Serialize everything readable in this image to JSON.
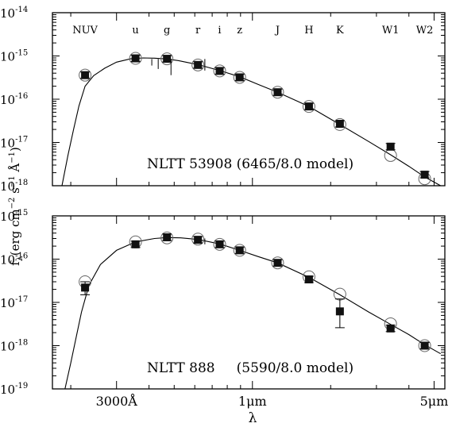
{
  "chart_data": [
    {
      "type": "scatter",
      "label": "NLTT 53908 (6465/8.0 model)",
      "ylim": [
        1e-18,
        1e-14
      ],
      "yscale": "log",
      "ytick_labels": [
        "10",
        "10",
        "10",
        "10",
        "10"
      ],
      "ytick_exponents": [
        "-18",
        "-17",
        "-16",
        "-15",
        "-14"
      ],
      "yticks": [
        1e-18,
        1e-17,
        1e-16,
        1e-15,
        1e-14
      ],
      "filter_labels": [
        "NUV",
        "u",
        "g",
        "r",
        "i",
        "z",
        "J",
        "H",
        "K",
        "W1",
        "W2"
      ],
      "filter_wavelengths_um": [
        0.227,
        0.355,
        0.469,
        0.617,
        0.748,
        0.893,
        1.25,
        1.65,
        2.17,
        3.4,
        4.6
      ],
      "observed": [
        {
          "x": 0.227,
          "y": 3.6e-16
        },
        {
          "x": 0.355,
          "y": 8.8e-16
        },
        {
          "x": 0.469,
          "y": 8.6e-16
        },
        {
          "x": 0.617,
          "y": 6.2e-16
        },
        {
          "x": 0.748,
          "y": 4.5e-16
        },
        {
          "x": 0.893,
          "y": 3.2e-16
        },
        {
          "x": 1.25,
          "y": 1.45e-16
        },
        {
          "x": 1.65,
          "y": 6.8e-17
        },
        {
          "x": 2.17,
          "y": 2.7e-17
        },
        {
          "x": 3.4,
          "y": 8e-18
        },
        {
          "x": 4.6,
          "y": 1.8e-18
        }
      ],
      "model_points": [
        {
          "x": 0.227,
          "y": 3.6e-16
        },
        {
          "x": 0.355,
          "y": 8.8e-16
        },
        {
          "x": 0.469,
          "y": 8.6e-16
        },
        {
          "x": 0.617,
          "y": 6.2e-16
        },
        {
          "x": 0.748,
          "y": 4.5e-16
        },
        {
          "x": 0.893,
          "y": 3.2e-16
        },
        {
          "x": 1.25,
          "y": 1.45e-16
        },
        {
          "x": 1.65,
          "y": 6.8e-17
        },
        {
          "x": 2.17,
          "y": 2.6e-17
        },
        {
          "x": 3.4,
          "y": 5e-18
        },
        {
          "x": 4.6,
          "y": 1.45e-18
        }
      ],
      "model_curve": [
        {
          "x": 0.185,
          "y": 1e-18
        },
        {
          "x": 0.195,
          "y": 5e-18
        },
        {
          "x": 0.205,
          "y": 2e-17
        },
        {
          "x": 0.215,
          "y": 7e-17
        },
        {
          "x": 0.227,
          "y": 2e-16
        },
        {
          "x": 0.245,
          "y": 3.5e-16
        },
        {
          "x": 0.27,
          "y": 5.2e-16
        },
        {
          "x": 0.3,
          "y": 7.2e-16
        },
        {
          "x": 0.34,
          "y": 8.6e-16
        },
        {
          "x": 0.38,
          "y": 9e-16
        },
        {
          "x": 0.42,
          "y": 8.9e-16
        },
        {
          "x": 0.469,
          "y": 8.5e-16
        },
        {
          "x": 0.52,
          "y": 7.8e-16
        },
        {
          "x": 0.617,
          "y": 6.3e-16
        },
        {
          "x": 0.748,
          "y": 4.6e-16
        },
        {
          "x": 0.893,
          "y": 3.3e-16
        },
        {
          "x": 1.05,
          "y": 2.2e-16
        },
        {
          "x": 1.25,
          "y": 1.45e-16
        },
        {
          "x": 1.65,
          "y": 6.8e-17
        },
        {
          "x": 2.17,
          "y": 2.6e-17
        },
        {
          "x": 2.8,
          "y": 1.05e-17
        },
        {
          "x": 3.4,
          "y": 5.2e-18
        },
        {
          "x": 4.0,
          "y": 2.8e-18
        },
        {
          "x": 4.6,
          "y": 1.6e-18
        },
        {
          "x": 5.3,
          "y": 9.5e-19
        }
      ]
    },
    {
      "type": "scatter",
      "label": "NLTT 888     (5590/8.0 model)",
      "ylim": [
        1e-19,
        1e-15
      ],
      "yscale": "log",
      "ytick_labels": [
        "10",
        "10",
        "10",
        "10",
        "10"
      ],
      "ytick_exponents": [
        "-19",
        "-18",
        "-17",
        "-16",
        "-15"
      ],
      "yticks": [
        1e-19,
        1e-18,
        1e-17,
        1e-16,
        1e-15
      ],
      "xscale": "log",
      "xlim_um": [
        0.17,
        5.5
      ],
      "xtick_labels": [
        "3000Å",
        "1μm",
        "5μm"
      ],
      "xticks_um": [
        0.3,
        1.0,
        5.0
      ],
      "xlabel": "λ",
      "observed": [
        {
          "x": 0.227,
          "y": 2.2e-17,
          "yerr_lo": 1.5e-17,
          "yerr_hi": 3e-17
        },
        {
          "x": 0.355,
          "y": 2.2e-16
        },
        {
          "x": 0.469,
          "y": 3.2e-16
        },
        {
          "x": 0.617,
          "y": 2.8e-16
        },
        {
          "x": 0.748,
          "y": 2.2e-16
        },
        {
          "x": 0.893,
          "y": 1.6e-16
        },
        {
          "x": 1.25,
          "y": 8.2e-17
        },
        {
          "x": 1.65,
          "y": 3.4e-17
        },
        {
          "x": 2.17,
          "y": 6.2e-18,
          "yerr_lo": 2.6e-18,
          "yerr_hi": 1.2e-17
        },
        {
          "x": 3.4,
          "y": 2.5e-18
        },
        {
          "x": 4.6,
          "y": 1e-18
        }
      ],
      "model_points": [
        {
          "x": 0.227,
          "y": 3e-17
        },
        {
          "x": 0.355,
          "y": 2.5e-16
        },
        {
          "x": 0.469,
          "y": 3.1e-16
        },
        {
          "x": 0.617,
          "y": 2.9e-16
        },
        {
          "x": 0.748,
          "y": 2.2e-16
        },
        {
          "x": 0.893,
          "y": 1.6e-16
        },
        {
          "x": 1.25,
          "y": 8.2e-17
        },
        {
          "x": 1.65,
          "y": 3.9e-17
        },
        {
          "x": 2.17,
          "y": 1.55e-17
        },
        {
          "x": 3.4,
          "y": 3.2e-18
        },
        {
          "x": 4.6,
          "y": 1e-18
        }
      ],
      "model_curve": [
        {
          "x": 0.19,
          "y": 1e-19
        },
        {
          "x": 0.2,
          "y": 4e-19
        },
        {
          "x": 0.21,
          "y": 1.6e-18
        },
        {
          "x": 0.22,
          "y": 6e-18
        },
        {
          "x": 0.235,
          "y": 2.5e-17
        },
        {
          "x": 0.26,
          "y": 7.5e-17
        },
        {
          "x": 0.3,
          "y": 1.6e-16
        },
        {
          "x": 0.355,
          "y": 2.5e-16
        },
        {
          "x": 0.42,
          "y": 3e-16
        },
        {
          "x": 0.469,
          "y": 3.15e-16
        },
        {
          "x": 0.53,
          "y": 3.1e-16
        },
        {
          "x": 0.617,
          "y": 2.85e-16
        },
        {
          "x": 0.748,
          "y": 2.25e-16
        },
        {
          "x": 0.893,
          "y": 1.6e-16
        },
        {
          "x": 1.05,
          "y": 1.15e-16
        },
        {
          "x": 1.25,
          "y": 8.2e-17
        },
        {
          "x": 1.65,
          "y": 3.8e-17
        },
        {
          "x": 2.17,
          "y": 1.5e-17
        },
        {
          "x": 2.8,
          "y": 6e-18
        },
        {
          "x": 3.4,
          "y": 3.1e-18
        },
        {
          "x": 4.0,
          "y": 1.8e-18
        },
        {
          "x": 4.6,
          "y": 1.05e-18
        },
        {
          "x": 5.3,
          "y": 6.5e-19
        }
      ]
    }
  ],
  "ylabel": {
    "base": "f",
    "sub": "λ",
    "unit_pre": "(erg cm",
    "exp1": "−2",
    "unit_mid": " s",
    "exp2": "−1",
    "unit_post1": " Å",
    "exp3": "−1",
    "unit_post2": ")"
  }
}
